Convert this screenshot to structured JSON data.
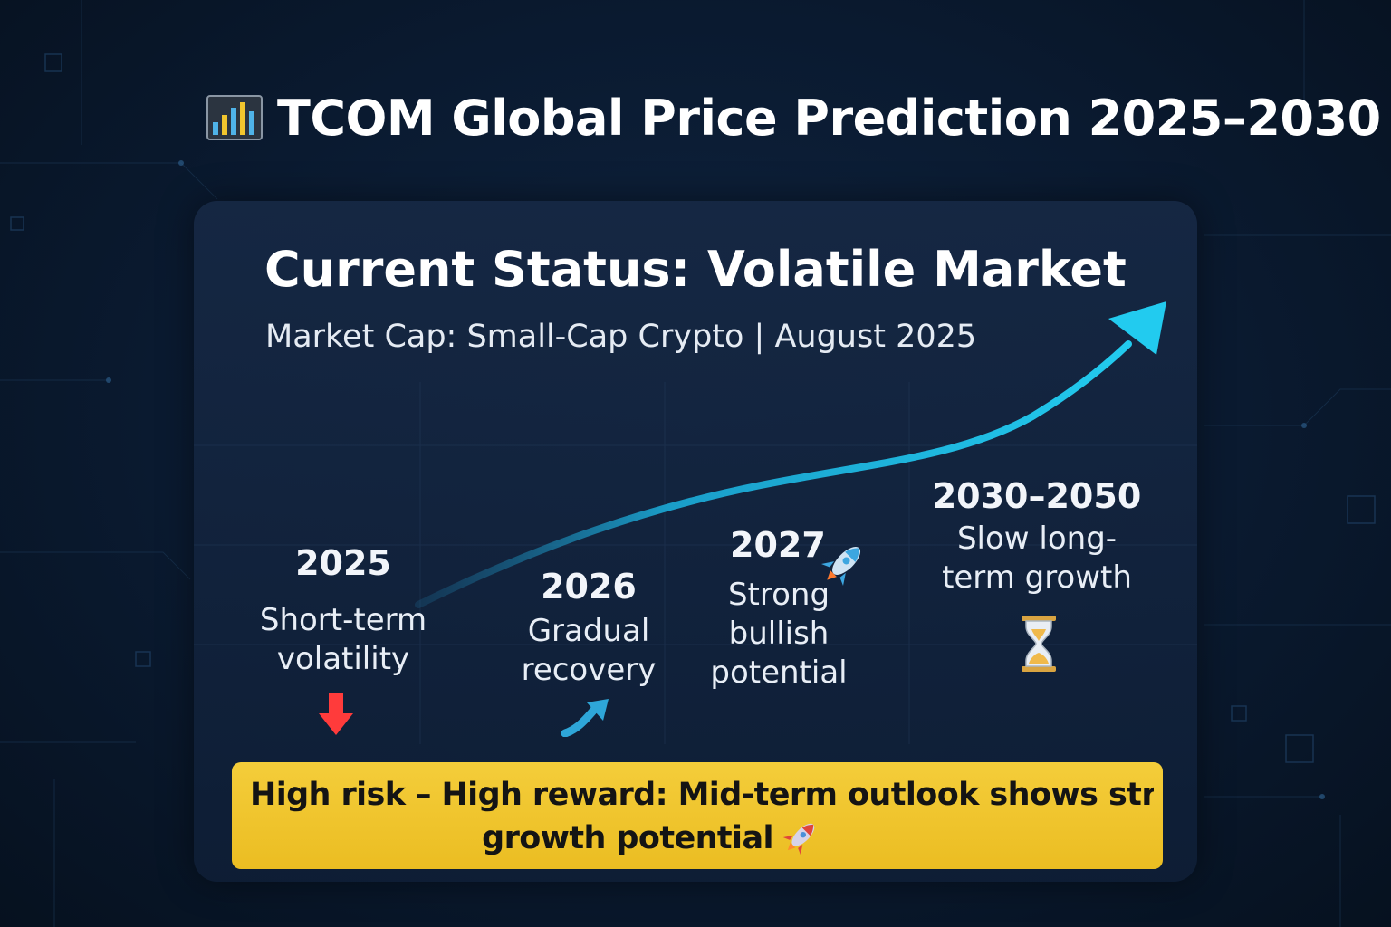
{
  "header": {
    "title": "TCOM Global Price Prediction 2025–2030",
    "icon": "bar-chart-icon"
  },
  "status": {
    "title": "Current Status: Volatile Market",
    "subtitle": "Market Cap: Small-Cap Crypto | August 2025"
  },
  "stages": [
    {
      "year": "2025",
      "description": "Short-term volatility",
      "icon": "red-down-arrow-icon",
      "color": "#ff3b3b"
    },
    {
      "year": "2026",
      "description": "Gradual recovery",
      "icon": "upward-trend-arrow-icon",
      "color": "#2ea6d8"
    },
    {
      "year": "2027",
      "description": "Strong bullish potential",
      "icon": "rocket-icon"
    },
    {
      "year": "2030–2050",
      "description": "Slow long-term growth",
      "icon": "hourglass-icon"
    }
  ],
  "banner": {
    "line1": "High risk – High reward: Mid-term outlook shows strong",
    "line2": "growth potential",
    "icon": "rocket-icon",
    "color": "#f2c62e"
  },
  "colors": {
    "background": "#0a1a30",
    "trend_line": "#1fc3e8",
    "banner": "#f2c62e"
  }
}
